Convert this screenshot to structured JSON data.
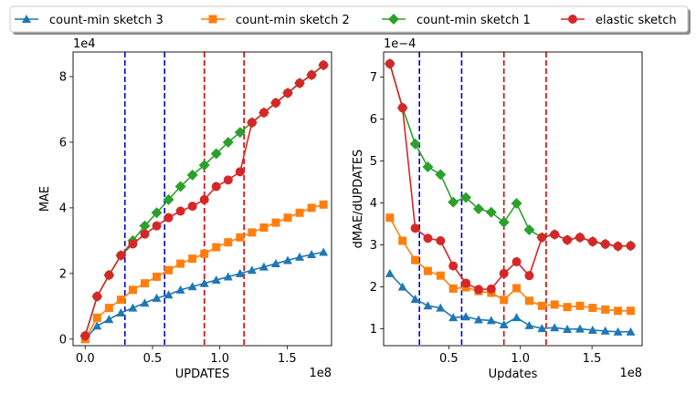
{
  "legend": {
    "items": [
      {
        "name": "count-min sketch 3",
        "color": "#1f77b4",
        "marker": "triangle"
      },
      {
        "name": "count-min sketch 2",
        "color": "#ff7f0e",
        "marker": "square"
      },
      {
        "name": "count-min sketch 1",
        "color": "#2ca02c",
        "marker": "diamond"
      },
      {
        "name": "elastic sketch",
        "color": "#d62728",
        "marker": "circle"
      }
    ]
  },
  "chart_data": [
    {
      "type": "line",
      "xlabel": "UPDATES",
      "ylabel": "MAE",
      "x_offset_label": "1e8",
      "y_offset_label": "1e4",
      "xlim": [
        -9000000.0,
        183000000.0
      ],
      "ylim": [
        -2000,
        87500
      ],
      "xticks": [
        0,
        50000000.0,
        100000000.0,
        150000000.0
      ],
      "xtick_labels": [
        "0.0",
        "0.5",
        "1.0",
        "1.5"
      ],
      "yticks": [
        0,
        20000,
        40000,
        60000,
        80000
      ],
      "ytick_labels": [
        "0",
        "2",
        "4",
        "6",
        "8"
      ],
      "vlines": [
        {
          "x": 29500000.0,
          "color": "#0000cc"
        },
        {
          "x": 59000000.0,
          "color": "#0000cc"
        },
        {
          "x": 88500000.0,
          "color": "#dd0000"
        },
        {
          "x": 118000000.0,
          "color": "#dd0000"
        }
      ],
      "x": [
        0,
        8850000.0,
        17700000.0,
        26550000.0,
        35400000.0,
        44250000.0,
        53100000.0,
        61950000.0,
        70800000.0,
        79650000.0,
        88500000.0,
        97350000.0,
        106200000.0,
        115050000.0,
        123900000.0,
        132750000.0,
        141600000.0,
        150450000.0,
        159300000.0,
        168150000.0,
        177000000.0
      ],
      "series": [
        {
          "name": "count-min sketch 3",
          "values": [
            0,
            4000,
            6000,
            8000,
            9500,
            11000,
            12500,
            13500,
            15000,
            16000,
            17000,
            18000,
            19000,
            20000,
            21000,
            22000,
            23000,
            24000,
            25000,
            25800,
            26500
          ]
        },
        {
          "name": "count-min sketch 2",
          "values": [
            0,
            6500,
            9500,
            12000,
            15000,
            17000,
            19000,
            21000,
            23000,
            24500,
            26000,
            28000,
            29500,
            31000,
            32500,
            34000,
            35500,
            37000,
            38500,
            40000,
            41000
          ]
        },
        {
          "name": "count-min sketch 1",
          "values": [
            1000,
            13000,
            19500,
            25500,
            30000,
            34500,
            38500,
            42500,
            46500,
            50000,
            53000,
            56500,
            60000,
            63000,
            66000,
            69000,
            72000,
            75000,
            78000,
            80500,
            83500
          ]
        },
        {
          "name": "elastic sketch",
          "values": [
            1000,
            13000,
            19500,
            25500,
            29000,
            32000,
            34500,
            37000,
            39000,
            40500,
            42500,
            46500,
            48500,
            51000,
            66000,
            69000,
            72000,
            75000,
            78000,
            80500,
            83500
          ]
        }
      ]
    },
    {
      "type": "line",
      "xlabel": "Updates",
      "ylabel": "dMAE/dUPDATES",
      "x_offset_label": "1e8",
      "y_offset_label": "1e−4",
      "xlim": [
        4500000.0,
        185000000.0
      ],
      "ylim": [
        6e-05,
        0.00076
      ],
      "xticks": [
        50000000.0,
        100000000.0,
        150000000.0
      ],
      "xtick_labels": [
        "0.5",
        "1.0",
        "1.5"
      ],
      "yticks": [
        0.0001,
        0.0002,
        0.0003,
        0.0004,
        0.0005,
        0.0006,
        0.0007
      ],
      "ytick_labels": [
        "1",
        "2",
        "3",
        "4",
        "5",
        "6",
        "7"
      ],
      "vlines": [
        {
          "x": 29500000.0,
          "color": "#0000cc"
        },
        {
          "x": 59000000.0,
          "color": "#0000cc"
        },
        {
          "x": 88500000.0,
          "color": "#dd0000"
        },
        {
          "x": 118000000.0,
          "color": "#dd0000"
        }
      ],
      "x": [
        8850000.0,
        17700000.0,
        26550000.0,
        35400000.0,
        44250000.0,
        53100000.0,
        61950000.0,
        70800000.0,
        79650000.0,
        88500000.0,
        97350000.0,
        106200000.0,
        115050000.0,
        123900000.0,
        132750000.0,
        141600000.0,
        150450000.0,
        159300000.0,
        168150000.0,
        177000000.0
      ],
      "series": [
        {
          "name": "count-min sketch 3",
          "values": [
            0.000232,
            0.0002,
            0.000171,
            0.000155,
            0.00015,
            0.000127,
            0.000129,
            0.000122,
            0.00012,
            0.00011,
            0.000127,
            0.000108,
            0.000101,
            0.000103,
            9.9e-05,
            0.0001,
            9.7e-05,
            9.5e-05,
            9.3e-05,
            9.3e-05
          ]
        },
        {
          "name": "count-min sketch 2",
          "values": [
            0.000365,
            0.00031,
            0.000264,
            0.000238,
            0.000227,
            0.000196,
            0.000199,
            0.00019,
            0.000186,
            0.000169,
            0.000197,
            0.000167,
            0.000155,
            0.000158,
            0.000152,
            0.000155,
            0.00015,
            0.000146,
            0.000143,
            0.000143
          ]
        },
        {
          "name": "count-min sketch 1",
          "values": [
            0.000732,
            0.000627,
            0.000541,
            0.000486,
            0.000468,
            0.000402,
            0.000413,
            0.000386,
            0.000378,
            0.000354,
            0.000399,
            0.000336,
            0.000318,
            0.000325,
            0.000312,
            0.000318,
            0.000308,
            0.000302,
            0.000297,
            0.000298
          ]
        },
        {
          "name": "elastic sketch",
          "values": [
            0.000732,
            0.000627,
            0.00034,
            0.000316,
            0.00031,
            0.00025,
            0.000209,
            0.000194,
            0.000195,
            0.000232,
            0.00026,
            0.000227,
            0.000318,
            0.000325,
            0.000312,
            0.000318,
            0.000308,
            0.000302,
            0.000297,
            0.000298
          ]
        }
      ]
    }
  ]
}
